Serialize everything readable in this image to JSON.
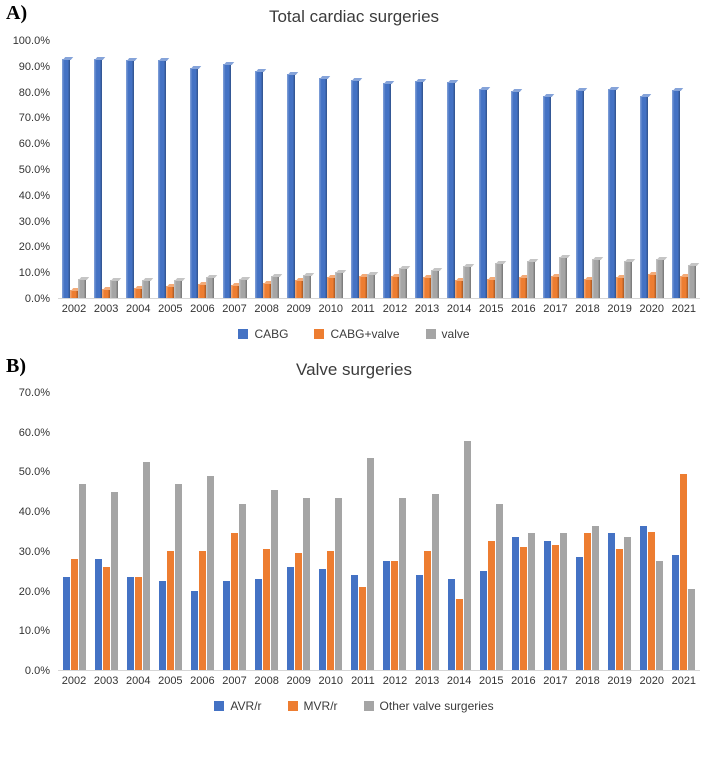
{
  "chart_data": [
    {
      "type": "bar",
      "panel_label": "A)",
      "title": "Total cardiac surgeries",
      "categories": [
        "2002",
        "2003",
        "2004",
        "2005",
        "2006",
        "2007",
        "2008",
        "2009",
        "2010",
        "2011",
        "2012",
        "2013",
        "2014",
        "2015",
        "2016",
        "2017",
        "2018",
        "2019",
        "2020",
        "2021"
      ],
      "series": [
        {
          "name": "CABG",
          "color": "#4472C4",
          "values": [
            93,
            93,
            92.5,
            92.5,
            89.5,
            91,
            88.5,
            87,
            85.5,
            85,
            83.5,
            84.5,
            84,
            81.5,
            80.5,
            78.5,
            81,
            81.5,
            78.5,
            81
          ]
        },
        {
          "name": "CABG+valve",
          "color": "#ED7D31",
          "values": [
            3,
            3.5,
            4,
            4.5,
            5.5,
            5,
            6,
            7,
            8,
            8.5,
            8.5,
            8,
            7,
            7.5,
            8,
            8.5,
            7.5,
            8,
            9.5,
            8.5
          ]
        },
        {
          "name": "valve",
          "color": "#A5A5A5",
          "values": [
            7.5,
            7,
            7,
            7,
            8,
            7.5,
            8.5,
            9,
            10,
            9.5,
            11.5,
            11,
            12.5,
            13.5,
            14.5,
            16,
            15,
            14.5,
            15,
            13
          ]
        }
      ],
      "ylim": [
        0,
        100
      ],
      "yticks": [
        "100.0%",
        "90.0%",
        "80.0%",
        "70.0%",
        "60.0%",
        "50.0%",
        "40.0%",
        "30.0%",
        "20.0%",
        "10.0%",
        "0.0%"
      ],
      "legend_position": "bottom",
      "grid": false
    },
    {
      "type": "bar",
      "panel_label": "B)",
      "title": "Valve surgeries",
      "categories": [
        "2002",
        "2003",
        "2004",
        "2005",
        "2006",
        "2007",
        "2008",
        "2009",
        "2010",
        "2011",
        "2012",
        "2013",
        "2014",
        "2015",
        "2016",
        "2017",
        "2018",
        "2019",
        "2020",
        "2021"
      ],
      "series": [
        {
          "name": "AVR/r",
          "color": "#4472C4",
          "values": [
            23.5,
            28,
            23.5,
            22.5,
            20,
            22.5,
            23,
            26,
            25.5,
            24,
            27.5,
            24,
            23,
            25,
            33.5,
            32.5,
            28.5,
            34.5,
            36.5,
            29
          ]
        },
        {
          "name": "MVR/r",
          "color": "#ED7D31",
          "values": [
            28,
            26,
            23.5,
            30,
            30,
            34.5,
            30.5,
            29.5,
            30,
            21,
            27.5,
            30,
            18,
            32.5,
            31,
            31.5,
            34.5,
            30.5,
            35,
            49.5
          ]
        },
        {
          "name": "Other valve surgeries",
          "color": "#A5A5A5",
          "values": [
            47,
            45,
            52.5,
            47,
            49,
            42,
            45.5,
            43.5,
            43.5,
            53.5,
            43.5,
            44.5,
            58,
            42,
            34.5,
            34.5,
            36.5,
            33.5,
            27.5,
            20.5
          ]
        }
      ],
      "ylim": [
        0,
        70
      ],
      "yticks": [
        "70.0%",
        "60.0%",
        "50.0%",
        "40.0%",
        "30.0%",
        "20.0%",
        "10.0%",
        "0.0%"
      ],
      "legend_position": "bottom",
      "grid": false
    }
  ]
}
